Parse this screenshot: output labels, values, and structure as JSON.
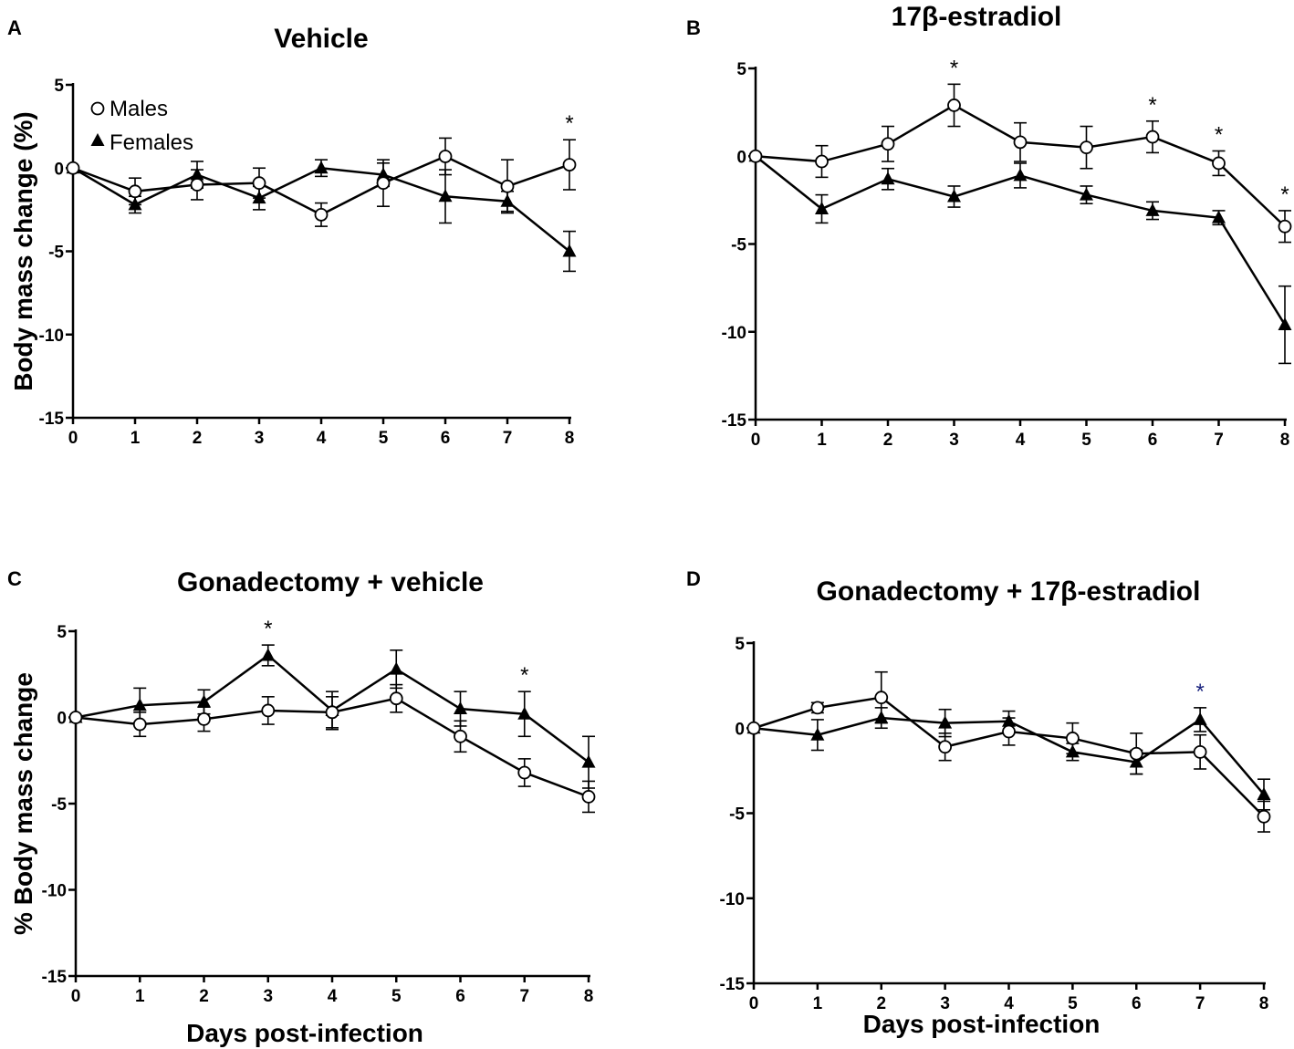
{
  "figure": {
    "legend": {
      "males": "Males",
      "females": "Females"
    }
  },
  "chart_data": [
    {
      "panel": "A",
      "type": "line",
      "title": "Vehicle",
      "xlabel": "",
      "ylabel": "Body mass change (%)",
      "x": [
        0,
        1,
        2,
        3,
        4,
        5,
        6,
        7,
        8
      ],
      "xlim": [
        0,
        8
      ],
      "ylim": [
        -15,
        5
      ],
      "yticks": [
        5,
        0,
        -5,
        -10,
        -15
      ],
      "legend_position": "top-left",
      "series": [
        {
          "name": "Males",
          "marker": "open-circle",
          "values": [
            0,
            -1.4,
            -1.0,
            -0.9,
            -2.8,
            -0.9,
            0.7,
            -1.1,
            0.2
          ],
          "errors": [
            0,
            0.8,
            0.9,
            0.9,
            0.7,
            1.4,
            1.1,
            1.6,
            1.5
          ]
        },
        {
          "name": "Females",
          "marker": "filled-triangle",
          "values": [
            0,
            -2.2,
            -0.4,
            -1.8,
            0.0,
            -0.4,
            -1.7,
            -2.0,
            -5.0
          ],
          "errors": [
            0,
            0.5,
            0.8,
            0.7,
            0.5,
            0.7,
            1.6,
            0.6,
            1.2
          ]
        }
      ],
      "significance": [
        {
          "x": 8,
          "label": "*"
        }
      ]
    },
    {
      "panel": "B",
      "type": "line",
      "title": "17β-estradiol",
      "xlabel": "",
      "ylabel": "",
      "x": [
        0,
        1,
        2,
        3,
        4,
        5,
        6,
        7,
        8
      ],
      "xlim": [
        0,
        8
      ],
      "ylim": [
        -15,
        5
      ],
      "yticks": [
        5,
        0,
        -5,
        -10,
        -15
      ],
      "series": [
        {
          "name": "Males",
          "marker": "open-circle",
          "values": [
            0,
            -0.3,
            0.7,
            2.9,
            0.8,
            0.5,
            1.1,
            -0.4,
            -4.0
          ],
          "errors": [
            0,
            0.9,
            1.0,
            1.2,
            1.1,
            1.2,
            0.9,
            0.7,
            0.9
          ]
        },
        {
          "name": "Females",
          "marker": "filled-triangle",
          "values": [
            0,
            -3.0,
            -1.3,
            -2.3,
            -1.1,
            -2.2,
            -3.1,
            -3.5,
            -9.6
          ],
          "errors": [
            0,
            0.8,
            0.6,
            0.6,
            0.7,
            0.5,
            0.5,
            0.4,
            2.2
          ]
        }
      ],
      "significance": [
        {
          "x": 3,
          "label": "*"
        },
        {
          "x": 6,
          "label": "*"
        },
        {
          "x": 7,
          "label": "*"
        },
        {
          "x": 8,
          "label": "*"
        }
      ]
    },
    {
      "panel": "C",
      "type": "line",
      "title": "Gonadectomy + vehicle",
      "xlabel": "Days post-infection",
      "ylabel": "% Body mass change",
      "x": [
        0,
        1,
        2,
        3,
        4,
        5,
        6,
        7,
        8
      ],
      "xlim": [
        0,
        8
      ],
      "ylim": [
        -15,
        5
      ],
      "yticks": [
        5,
        0,
        -5,
        -10,
        -15
      ],
      "series": [
        {
          "name": "Males",
          "marker": "open-circle",
          "values": [
            0,
            -0.4,
            -0.1,
            0.4,
            0.3,
            1.1,
            -1.1,
            -3.2,
            -4.6
          ],
          "errors": [
            0,
            0.7,
            0.7,
            0.8,
            0.9,
            0.8,
            0.9,
            0.8,
            0.9
          ]
        },
        {
          "name": "Females",
          "marker": "filled-triangle",
          "values": [
            0,
            0.7,
            0.9,
            3.6,
            0.4,
            2.8,
            0.5,
            0.2,
            -2.6
          ],
          "errors": [
            0,
            1.0,
            0.7,
            0.6,
            1.1,
            1.1,
            1.0,
            1.3,
            1.5
          ]
        }
      ],
      "significance": [
        {
          "x": 3,
          "label": "*"
        },
        {
          "x": 7,
          "label": "*"
        }
      ]
    },
    {
      "panel": "D",
      "type": "line",
      "title": "Gonadectomy + 17β-estradiol",
      "xlabel": "Days post-infection",
      "ylabel": "",
      "x": [
        0,
        1,
        2,
        3,
        4,
        5,
        6,
        7,
        8
      ],
      "xlim": [
        0,
        8
      ],
      "ylim": [
        -15,
        5
      ],
      "yticks": [
        5,
        0,
        -5,
        -10,
        -15
      ],
      "series": [
        {
          "name": "Males",
          "marker": "open-circle",
          "values": [
            0,
            1.2,
            1.8,
            -1.1,
            -0.2,
            -0.6,
            -1.5,
            -1.4,
            -5.2
          ],
          "errors": [
            0,
            0.3,
            1.5,
            0.8,
            0.8,
            0.9,
            1.2,
            1.0,
            0.9
          ]
        },
        {
          "name": "Females",
          "marker": "filled-triangle",
          "values": [
            0,
            -0.4,
            0.6,
            0.3,
            0.4,
            -1.4,
            -2.0,
            0.5,
            -3.9
          ],
          "errors": [
            0,
            0.9,
            0.6,
            0.8,
            0.6,
            0.5,
            0.7,
            0.7,
            0.9
          ]
        }
      ],
      "significance": [
        {
          "x": 7,
          "label": "*",
          "color": "#1a237e"
        }
      ]
    }
  ]
}
